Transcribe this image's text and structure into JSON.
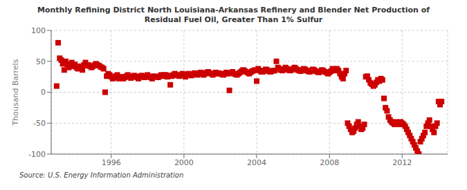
{
  "chart_data": {
    "type": "scatter",
    "title": "Monthly Refining District North Louisiana-Arkansas Refinery and Blender Net Production of\nResidual Fuel Oil, Greater Than 1% Sulfur",
    "ylabel": "Thousand Barrels",
    "annotations": [
      "Source: U.S. Energy Information Administration"
    ],
    "color": "#cc0000",
    "marker": "square",
    "grid": true,
    "xlim": [
      1992.7,
      2014.5
    ],
    "xticks": [
      1996,
      2000,
      2004,
      2008,
      2012
    ],
    "ylim": [
      -100,
      100
    ],
    "yticks": [
      -100,
      -50,
      0,
      50,
      100
    ],
    "x": [
      1993.0,
      1993.083,
      1993.167,
      1993.25,
      1993.333,
      1993.417,
      1993.5,
      1993.583,
      1993.667,
      1993.75,
      1993.833,
      1993.917,
      1994.0,
      1994.083,
      1994.167,
      1994.25,
      1994.333,
      1994.417,
      1994.5,
      1994.583,
      1994.667,
      1994.75,
      1994.833,
      1994.917,
      1995.0,
      1995.083,
      1995.167,
      1995.25,
      1995.333,
      1995.417,
      1995.5,
      1995.583,
      1995.667,
      1995.75,
      1995.833,
      1995.917,
      1996.0,
      1996.083,
      1996.167,
      1996.25,
      1996.333,
      1996.417,
      1996.5,
      1996.583,
      1996.667,
      1996.75,
      1996.833,
      1996.917,
      1997.0,
      1997.083,
      1997.167,
      1997.25,
      1997.333,
      1997.417,
      1997.5,
      1997.583,
      1997.667,
      1997.75,
      1997.833,
      1997.917,
      1998.0,
      1998.083,
      1998.167,
      1998.25,
      1998.333,
      1998.417,
      1998.5,
      1998.583,
      1998.667,
      1998.75,
      1998.833,
      1998.917,
      1999.0,
      1999.083,
      1999.167,
      1999.25,
      1999.333,
      1999.417,
      1999.5,
      1999.583,
      1999.667,
      1999.75,
      1999.833,
      1999.917,
      2000.0,
      2000.083,
      2000.167,
      2000.25,
      2000.333,
      2000.417,
      2000.5,
      2000.583,
      2000.667,
      2000.75,
      2000.833,
      2000.917,
      2001.0,
      2001.083,
      2001.167,
      2001.25,
      2001.333,
      2001.417,
      2001.5,
      2001.583,
      2001.667,
      2001.75,
      2001.833,
      2001.917,
      2002.0,
      2002.083,
      2002.167,
      2002.25,
      2002.333,
      2002.417,
      2002.5,
      2002.583,
      2002.667,
      2002.75,
      2002.833,
      2002.917,
      2003.0,
      2003.083,
      2003.167,
      2003.25,
      2003.333,
      2003.417,
      2003.5,
      2003.583,
      2003.667,
      2003.75,
      2003.833,
      2003.917,
      2004.0,
      2004.083,
      2004.167,
      2004.25,
      2004.333,
      2004.417,
      2004.5,
      2004.583,
      2004.667,
      2004.75,
      2004.833,
      2004.917,
      2005.0,
      2005.083,
      2005.167,
      2005.25,
      2005.333,
      2005.417,
      2005.5,
      2005.583,
      2005.667,
      2005.75,
      2005.833,
      2005.917,
      2006.0,
      2006.083,
      2006.167,
      2006.25,
      2006.333,
      2006.417,
      2006.5,
      2006.583,
      2006.667,
      2006.75,
      2006.833,
      2006.917,
      2007.0,
      2007.083,
      2007.167,
      2007.25,
      2007.333,
      2007.417,
      2007.5,
      2007.583,
      2007.667,
      2007.75,
      2007.833,
      2007.917,
      2008.0,
      2008.083,
      2008.167,
      2008.25,
      2008.333,
      2008.417,
      2008.5,
      2008.583,
      2008.667,
      2008.75,
      2008.833,
      2008.917,
      2009.0,
      2009.083,
      2009.167,
      2009.25,
      2009.333,
      2009.417,
      2009.5,
      2009.583,
      2009.667,
      2009.75,
      2009.833,
      2009.917,
      2010.0,
      2010.083,
      2010.167,
      2010.25,
      2010.333,
      2010.417,
      2010.5,
      2010.583,
      2010.667,
      2010.75,
      2010.833,
      2010.917,
      2011.0,
      2011.083,
      2011.167,
      2011.25,
      2011.333,
      2011.417,
      2011.5,
      2011.583,
      2011.667,
      2011.75,
      2011.833,
      2011.917,
      2012.0,
      2012.083,
      2012.167,
      2012.25,
      2012.333,
      2012.417,
      2012.5,
      2012.583,
      2012.667,
      2012.75,
      2012.833,
      2012.917,
      2013.0,
      2013.083,
      2013.167,
      2013.25,
      2013.333,
      2013.417,
      2013.5,
      2013.583,
      2013.667,
      2013.75,
      2013.833,
      2013.917,
      2014.0,
      2014.083,
      2014.167
    ],
    "values": [
      10,
      80,
      55,
      52,
      46,
      36,
      50,
      45,
      40,
      44,
      48,
      42,
      45,
      40,
      38,
      42,
      40,
      36,
      44,
      48,
      43,
      44,
      42,
      40,
      42,
      44,
      46,
      44,
      43,
      41,
      40,
      38,
      0,
      26,
      30,
      28,
      25,
      22,
      24,
      26,
      28,
      22,
      24,
      25,
      22,
      24,
      26,
      28,
      25,
      23,
      25,
      27,
      26,
      24,
      22,
      25,
      27,
      25,
      24,
      26,
      28,
      25,
      24,
      22,
      26,
      25,
      25,
      24,
      26,
      28,
      26,
      28,
      28,
      25,
      27,
      12,
      26,
      28,
      30,
      28,
      27,
      26,
      28,
      30,
      28,
      25,
      28,
      30,
      28,
      27,
      29,
      31,
      30,
      28,
      30,
      32,
      30,
      28,
      30,
      32,
      33,
      31,
      30,
      28,
      30,
      32,
      30,
      31,
      30,
      29,
      28,
      30,
      32,
      30,
      3,
      31,
      33,
      30,
      29,
      28,
      30,
      32,
      34,
      36,
      35,
      33,
      32,
      30,
      32,
      34,
      35,
      36,
      18,
      38,
      35,
      33,
      33,
      35,
      37,
      36,
      34,
      33,
      34,
      35,
      35,
      50,
      40,
      38,
      36,
      35,
      37,
      40,
      38,
      36,
      35,
      36,
      38,
      40,
      38,
      36,
      35,
      34,
      36,
      38,
      37,
      35,
      34,
      33,
      35,
      37,
      36,
      34,
      33,
      32,
      34,
      36,
      35,
      33,
      32,
      30,
      32,
      34,
      38,
      36,
      35,
      38,
      35,
      30,
      25,
      22,
      30,
      35,
      -50,
      -55,
      -60,
      -65,
      -63,
      -58,
      -52,
      -48,
      -55,
      -60,
      -58,
      -52,
      25,
      26,
      20,
      15,
      13,
      10,
      12,
      16,
      20,
      18,
      22,
      20,
      -10,
      -25,
      -30,
      -40,
      -45,
      -48,
      -50,
      -52,
      -48,
      -50,
      -52,
      -48,
      -50,
      -52,
      -55,
      -60,
      -65,
      -70,
      -75,
      -80,
      -85,
      -90,
      -95,
      -100,
      -80,
      -75,
      -70,
      -65,
      -55,
      -50,
      -45,
      -55,
      -60,
      -65,
      -55,
      -50,
      -15,
      -20,
      -15
    ]
  }
}
